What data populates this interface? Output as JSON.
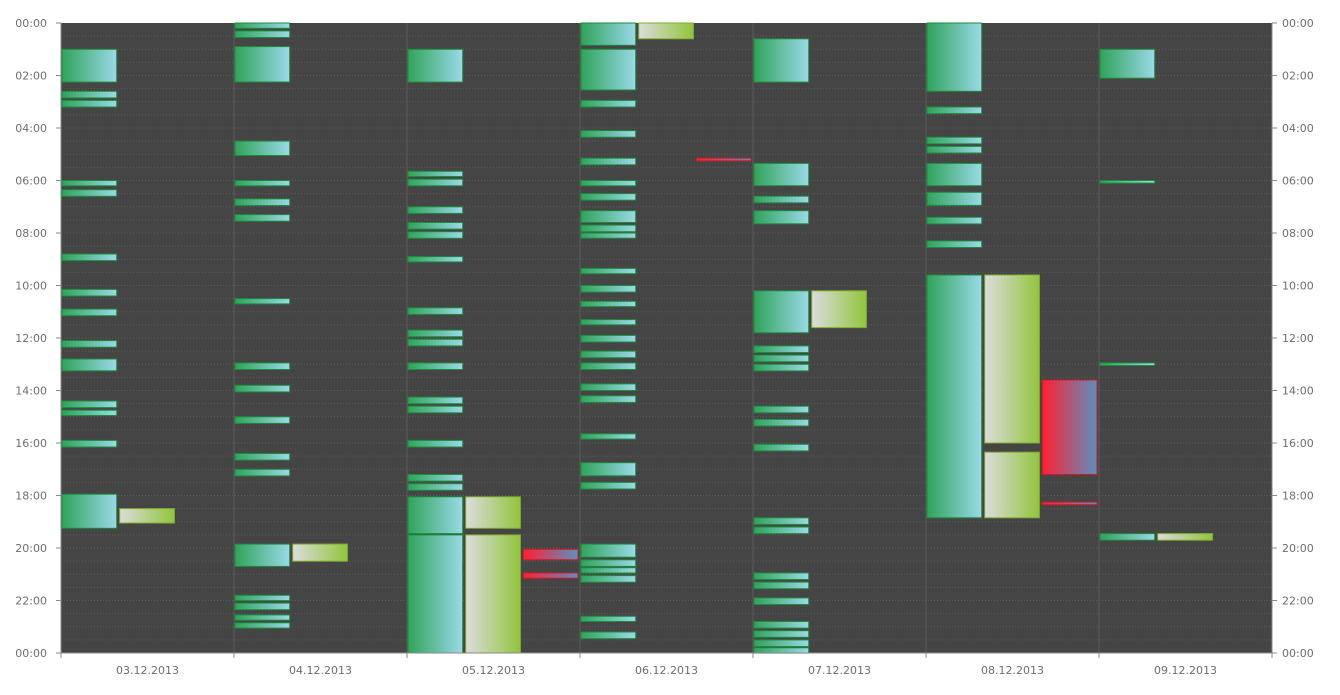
{
  "chart_data": {
    "type": "bar",
    "subtype": "calendar-timeline",
    "title": "",
    "xlabel": "",
    "ylabel": "",
    "y_unit": "hours",
    "y_range": [
      0,
      24
    ],
    "y_axis_inverted": true,
    "y_ticks": [
      "00:00",
      "02:00",
      "04:00",
      "06:00",
      "08:00",
      "10:00",
      "12:00",
      "14:00",
      "16:00",
      "18:00",
      "20:00",
      "22:00",
      "00:00"
    ],
    "categories": [
      "03.12.2013",
      "04.12.2013",
      "05.12.2013",
      "06.12.2013",
      "07.12.2013",
      "08.12.2013",
      "09.12.2013"
    ],
    "grid": true,
    "colors": {
      "background": "#454545",
      "grid": "#5e5e5e",
      "teal_start": "#2fa35a",
      "teal_end": "#9ad9e8",
      "lime_start": "#dcdcdc",
      "lime_end": "#92c53c",
      "red_start": "#ff2030",
      "red_end": "#5c8fbf"
    },
    "series": [
      {
        "style": "teal",
        "slot": 0,
        "events": [
          {
            "day": 0,
            "start": 1.0,
            "end": 2.25
          },
          {
            "day": 0,
            "start": 2.6,
            "end": 2.85
          },
          {
            "day": 0,
            "start": 2.95,
            "end": 3.2
          },
          {
            "day": 0,
            "start": 6.0,
            "end": 6.2
          },
          {
            "day": 0,
            "start": 6.35,
            "end": 6.6
          },
          {
            "day": 0,
            "start": 8.8,
            "end": 9.05
          },
          {
            "day": 0,
            "start": 10.15,
            "end": 10.4
          },
          {
            "day": 0,
            "start": 10.9,
            "end": 11.15
          },
          {
            "day": 0,
            "start": 12.1,
            "end": 12.35
          },
          {
            "day": 0,
            "start": 12.8,
            "end": 13.25
          },
          {
            "day": 0,
            "start": 14.4,
            "end": 14.65
          },
          {
            "day": 0,
            "start": 14.75,
            "end": 14.95
          },
          {
            "day": 0,
            "start": 15.9,
            "end": 16.15
          },
          {
            "day": 0,
            "start": 17.95,
            "end": 19.25
          },
          {
            "day": 1,
            "start": 0.0,
            "end": 0.2
          },
          {
            "day": 1,
            "start": 0.3,
            "end": 0.55
          },
          {
            "day": 1,
            "start": 0.9,
            "end": 2.25
          },
          {
            "day": 1,
            "start": 4.5,
            "end": 5.05
          },
          {
            "day": 1,
            "start": 6.0,
            "end": 6.2
          },
          {
            "day": 1,
            "start": 6.7,
            "end": 6.95
          },
          {
            "day": 1,
            "start": 7.3,
            "end": 7.55
          },
          {
            "day": 1,
            "start": 10.5,
            "end": 10.7
          },
          {
            "day": 1,
            "start": 12.95,
            "end": 13.2
          },
          {
            "day": 1,
            "start": 13.8,
            "end": 14.05
          },
          {
            "day": 1,
            "start": 15.0,
            "end": 15.25
          },
          {
            "day": 1,
            "start": 16.4,
            "end": 16.65
          },
          {
            "day": 1,
            "start": 17.0,
            "end": 17.25
          },
          {
            "day": 1,
            "start": 19.85,
            "end": 20.7
          },
          {
            "day": 1,
            "start": 21.8,
            "end": 22.0
          },
          {
            "day": 1,
            "start": 22.1,
            "end": 22.35
          },
          {
            "day": 1,
            "start": 22.55,
            "end": 22.75
          },
          {
            "day": 1,
            "start": 22.85,
            "end": 23.05
          },
          {
            "day": 2,
            "start": 1.0,
            "end": 2.25
          },
          {
            "day": 2,
            "start": 5.65,
            "end": 5.85
          },
          {
            "day": 2,
            "start": 5.95,
            "end": 6.2
          },
          {
            "day": 2,
            "start": 7.0,
            "end": 7.25
          },
          {
            "day": 2,
            "start": 7.6,
            "end": 7.85
          },
          {
            "day": 2,
            "start": 7.95,
            "end": 8.2
          },
          {
            "day": 2,
            "start": 8.9,
            "end": 9.1
          },
          {
            "day": 2,
            "start": 10.85,
            "end": 11.1
          },
          {
            "day": 2,
            "start": 11.7,
            "end": 11.95
          },
          {
            "day": 2,
            "start": 12.05,
            "end": 12.3
          },
          {
            "day": 2,
            "start": 12.95,
            "end": 13.2
          },
          {
            "day": 2,
            "start": 14.25,
            "end": 14.5
          },
          {
            "day": 2,
            "start": 14.6,
            "end": 14.85
          },
          {
            "day": 2,
            "start": 15.9,
            "end": 16.15
          },
          {
            "day": 2,
            "start": 17.2,
            "end": 17.45
          },
          {
            "day": 2,
            "start": 17.55,
            "end": 17.8
          },
          {
            "day": 2,
            "start": 18.05,
            "end": 19.45
          },
          {
            "day": 2,
            "start": 19.5,
            "end": 24.0
          },
          {
            "day": 3,
            "start": 0.0,
            "end": 0.85
          },
          {
            "day": 3,
            "start": 1.0,
            "end": 2.55
          },
          {
            "day": 3,
            "start": 2.95,
            "end": 3.2
          },
          {
            "day": 3,
            "start": 4.1,
            "end": 4.35
          },
          {
            "day": 3,
            "start": 5.15,
            "end": 5.4
          },
          {
            "day": 3,
            "start": 6.0,
            "end": 6.2
          },
          {
            "day": 3,
            "start": 6.5,
            "end": 6.75
          },
          {
            "day": 3,
            "start": 7.15,
            "end": 7.6
          },
          {
            "day": 3,
            "start": 7.7,
            "end": 7.95
          },
          {
            "day": 3,
            "start": 8.0,
            "end": 8.2
          },
          {
            "day": 3,
            "start": 9.35,
            "end": 9.55
          },
          {
            "day": 3,
            "start": 10.0,
            "end": 10.25
          },
          {
            "day": 3,
            "start": 10.6,
            "end": 10.8
          },
          {
            "day": 3,
            "start": 11.3,
            "end": 11.5
          },
          {
            "day": 3,
            "start": 11.9,
            "end": 12.15
          },
          {
            "day": 3,
            "start": 12.5,
            "end": 12.75
          },
          {
            "day": 3,
            "start": 12.95,
            "end": 13.2
          },
          {
            "day": 3,
            "start": 13.75,
            "end": 14.0
          },
          {
            "day": 3,
            "start": 14.2,
            "end": 14.45
          },
          {
            "day": 3,
            "start": 15.65,
            "end": 15.85
          },
          {
            "day": 3,
            "start": 16.75,
            "end": 17.25
          },
          {
            "day": 3,
            "start": 17.5,
            "end": 17.75
          },
          {
            "day": 3,
            "start": 19.85,
            "end": 20.35
          },
          {
            "day": 3,
            "start": 20.45,
            "end": 20.7
          },
          {
            "day": 3,
            "start": 20.75,
            "end": 20.95
          },
          {
            "day": 3,
            "start": 21.05,
            "end": 21.3
          },
          {
            "day": 3,
            "start": 22.6,
            "end": 22.8
          },
          {
            "day": 3,
            "start": 23.2,
            "end": 23.45
          },
          {
            "day": 4,
            "start": 0.6,
            "end": 2.25
          },
          {
            "day": 4,
            "start": 5.35,
            "end": 6.2
          },
          {
            "day": 4,
            "start": 6.6,
            "end": 6.85
          },
          {
            "day": 4,
            "start": 7.15,
            "end": 7.65
          },
          {
            "day": 4,
            "start": 10.2,
            "end": 11.8
          },
          {
            "day": 4,
            "start": 12.3,
            "end": 12.55
          },
          {
            "day": 4,
            "start": 12.65,
            "end": 12.9
          },
          {
            "day": 4,
            "start": 13.0,
            "end": 13.25
          },
          {
            "day": 4,
            "start": 14.6,
            "end": 14.85
          },
          {
            "day": 4,
            "start": 15.1,
            "end": 15.35
          },
          {
            "day": 4,
            "start": 16.05,
            "end": 16.3
          },
          {
            "day": 4,
            "start": 18.85,
            "end": 19.1
          },
          {
            "day": 4,
            "start": 19.2,
            "end": 19.45
          },
          {
            "day": 4,
            "start": 20.95,
            "end": 21.2
          },
          {
            "day": 4,
            "start": 21.3,
            "end": 21.55
          },
          {
            "day": 4,
            "start": 21.9,
            "end": 22.15
          },
          {
            "day": 4,
            "start": 22.8,
            "end": 23.05
          },
          {
            "day": 4,
            "start": 23.15,
            "end": 23.4
          },
          {
            "day": 4,
            "start": 23.5,
            "end": 23.75
          },
          {
            "day": 4,
            "start": 23.8,
            "end": 24.0
          },
          {
            "day": 5,
            "start": 0.0,
            "end": 2.6
          },
          {
            "day": 5,
            "start": 3.2,
            "end": 3.45
          },
          {
            "day": 5,
            "start": 4.35,
            "end": 4.6
          },
          {
            "day": 5,
            "start": 4.7,
            "end": 4.95
          },
          {
            "day": 5,
            "start": 5.35,
            "end": 6.2
          },
          {
            "day": 5,
            "start": 6.45,
            "end": 6.95
          },
          {
            "day": 5,
            "start": 7.4,
            "end": 7.65
          },
          {
            "day": 5,
            "start": 8.3,
            "end": 8.55
          },
          {
            "day": 5,
            "start": 9.6,
            "end": 18.85
          },
          {
            "day": 6,
            "start": 1.0,
            "end": 2.1
          },
          {
            "day": 6,
            "start": 6.0,
            "end": 6.1
          },
          {
            "day": 6,
            "start": 12.95,
            "end": 13.05
          },
          {
            "day": 6,
            "start": 19.45,
            "end": 19.7
          }
        ]
      },
      {
        "style": "lime",
        "slot": 1,
        "events": [
          {
            "day": 0,
            "start": 18.5,
            "end": 19.05
          },
          {
            "day": 1,
            "start": 19.85,
            "end": 20.5
          },
          {
            "day": 2,
            "start": 18.05,
            "end": 19.25
          },
          {
            "day": 2,
            "start": 19.5,
            "end": 24.0
          },
          {
            "day": 3,
            "start": 0.0,
            "end": 0.6
          },
          {
            "day": 4,
            "start": 10.2,
            "end": 11.6
          },
          {
            "day": 5,
            "start": 9.6,
            "end": 16.0
          },
          {
            "day": 5,
            "start": 16.35,
            "end": 18.85
          },
          {
            "day": 6,
            "start": 19.45,
            "end": 19.7
          }
        ]
      },
      {
        "style": "red",
        "slot": 2,
        "events": [
          {
            "day": 2,
            "start": 20.05,
            "end": 20.45
          },
          {
            "day": 2,
            "start": 20.95,
            "end": 21.15
          },
          {
            "day": 3,
            "start": 5.15,
            "end": 5.25
          },
          {
            "day": 5,
            "start": 13.6,
            "end": 17.2
          },
          {
            "day": 5,
            "start": 18.25,
            "end": 18.35
          }
        ]
      }
    ]
  }
}
